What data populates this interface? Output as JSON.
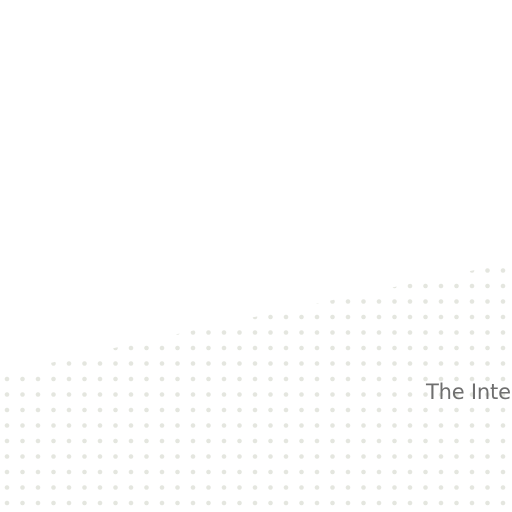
{
  "hero": {
    "headline": "The Inter"
  },
  "colors": {
    "background": "#ffffff",
    "dot": "#e4e6df",
    "headline": "#6f6f6f"
  },
  "decoration": {
    "pattern": "dot-grid"
  }
}
